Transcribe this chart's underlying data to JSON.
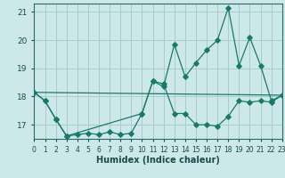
{
  "xlabel": "Humidex (Indice chaleur)",
  "bg_color": "#cce8e8",
  "grid_color": "#aacccc",
  "line_color": "#1a7a6a",
  "xlim": [
    0,
    23
  ],
  "ylim": [
    16.5,
    21.3
  ],
  "yticks": [
    17,
    18,
    19,
    20,
    21
  ],
  "xtick_labels": [
    "0",
    "1",
    "2",
    "3",
    "4",
    "5",
    "6",
    "7",
    "8",
    "9",
    "10",
    "11",
    "12",
    "13",
    "14",
    "15",
    "16",
    "17",
    "18",
    "19",
    "20",
    "21",
    "22",
    "23"
  ],
  "series1_x": [
    0,
    1,
    2,
    3,
    4,
    5,
    6,
    7,
    8,
    9,
    10,
    11,
    12,
    13,
    14,
    15,
    16,
    17,
    18,
    19,
    20,
    21,
    22,
    23
  ],
  "series1_y": [
    18.15,
    17.85,
    17.2,
    16.6,
    16.65,
    16.7,
    16.65,
    16.75,
    16.65,
    16.7,
    17.4,
    18.55,
    18.45,
    17.4,
    17.4,
    17.0,
    17.0,
    16.95,
    17.3,
    17.85,
    17.8,
    17.85,
    17.8,
    18.05
  ],
  "series2_x": [
    0,
    1,
    2,
    3,
    10,
    11,
    12,
    13,
    14,
    15,
    16,
    17,
    18,
    19,
    20,
    21,
    22,
    23
  ],
  "series2_y": [
    18.15,
    17.85,
    17.2,
    16.6,
    17.4,
    18.55,
    18.35,
    19.85,
    18.7,
    19.2,
    19.65,
    20.0,
    21.15,
    19.1,
    20.1,
    19.1,
    17.85,
    18.05
  ],
  "series3_x": [
    0,
    23
  ],
  "series3_y": [
    18.15,
    18.05
  ]
}
